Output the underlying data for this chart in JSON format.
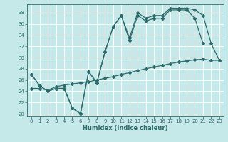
{
  "xlabel": "Humidex (Indice chaleur)",
  "bg_color": "#c5e8e8",
  "grid_color": "#ffffff",
  "line_color": "#2d6b6b",
  "xlim": [
    -0.5,
    23.5
  ],
  "ylim": [
    19.5,
    39.5
  ],
  "xticks": [
    0,
    1,
    2,
    3,
    4,
    5,
    6,
    7,
    8,
    9,
    10,
    11,
    12,
    13,
    14,
    15,
    16,
    17,
    18,
    19,
    20,
    21,
    22,
    23
  ],
  "yticks": [
    20,
    22,
    24,
    26,
    28,
    30,
    32,
    34,
    36,
    38
  ],
  "curve1_x": [
    0,
    1,
    2,
    3,
    4,
    5,
    6,
    7,
    8,
    9,
    10,
    11,
    12,
    13,
    14,
    15,
    16,
    17,
    18,
    19,
    20,
    21
  ],
  "curve1_y": [
    27,
    25,
    24,
    24.5,
    24.5,
    21,
    20,
    27.5,
    25.5,
    31,
    35.5,
    37.5,
    33,
    37.5,
    36.5,
    37,
    37,
    38.5,
    38.5,
    38.5,
    37,
    32.5
  ],
  "curve2_x": [
    0,
    1,
    2,
    3,
    4,
    5,
    6,
    7,
    8,
    9,
    10,
    11,
    12,
    13,
    14,
    15,
    16,
    17,
    18,
    19,
    20,
    21,
    22,
    23
  ],
  "curve2_y": [
    24.5,
    24.5,
    24.2,
    24.8,
    25.1,
    25.3,
    25.5,
    25.7,
    26.0,
    26.3,
    26.6,
    27.0,
    27.3,
    27.7,
    28.0,
    28.3,
    28.6,
    28.9,
    29.2,
    29.4,
    29.6,
    29.7,
    29.5,
    29.5
  ],
  "curve3_x": [
    0,
    1,
    2,
    3,
    4,
    5,
    6,
    7,
    8,
    9,
    10,
    11,
    12,
    13,
    14,
    15,
    16,
    17,
    18,
    19,
    20,
    21,
    22,
    23
  ],
  "curve3_y": [
    27,
    25,
    24,
    24.5,
    24.5,
    21,
    20,
    27.5,
    25.5,
    31,
    35.5,
    37.5,
    33.5,
    38,
    37,
    37.5,
    37.5,
    38.8,
    38.8,
    38.8,
    38.5,
    37.5,
    32.5,
    29.5
  ]
}
